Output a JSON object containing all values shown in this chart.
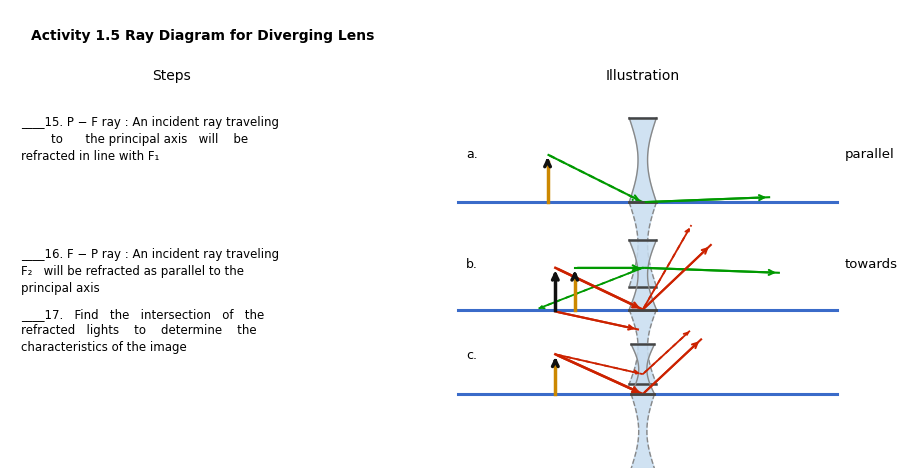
{
  "title": "Activity 1.5 Ray Diagram for Diverging Lens",
  "col1_header": "Steps",
  "col2_header": "Illustration",
  "step15_label": "____15. P − F ray : An incident ray traveling\n        to      the principal axis   will    be\nrefracted in line with F₁",
  "step16_label": "____16. F − P ray : An incident ray traveling\nF₂   will be refracted as parallel to the\nprincipal axis",
  "step17_label": "____17.   Find   the   intersection   of   the\nrefracted   lights    to    determine    the\ncharacteristics of the image",
  "label_a": "a.",
  "label_b": "b.",
  "label_c": "c.",
  "label_parallel": "parallel",
  "label_towards": "towards",
  "bg_color": "#ffffff",
  "axis_color": "#3a6bc9",
  "lens_fill": "#c8ddf0",
  "lens_edge": "#888888",
  "lens_edge_dark": "#444444",
  "arrow_green": "#009900",
  "arrow_red": "#cc2200",
  "object_color_gold": "#cc8800",
  "object_color_black": "#111111",
  "dashed_color": "#8899bb"
}
